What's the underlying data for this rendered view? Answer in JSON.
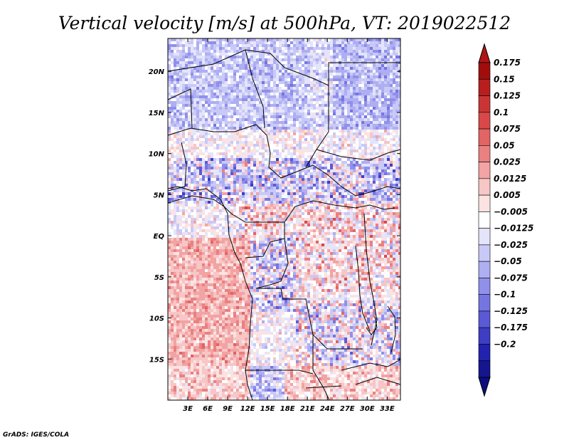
{
  "chart_data": {
    "type": "heatmap",
    "title": "Vertical velocity [m/s] at 500hPa, VT: 2019022512",
    "variable": "Vertical velocity",
    "units": "m/s",
    "level": "500hPa",
    "valid_time": "2019022512",
    "lon_range": [
      0,
      35
    ],
    "lat_range": [
      -20,
      24
    ],
    "x_ticks": [
      {
        "value": 3,
        "label": "3E"
      },
      {
        "value": 6,
        "label": "6E"
      },
      {
        "value": 9,
        "label": "9E"
      },
      {
        "value": 12,
        "label": "12E"
      },
      {
        "value": 15,
        "label": "15E"
      },
      {
        "value": 18,
        "label": "18E"
      },
      {
        "value": 21,
        "label": "21E"
      },
      {
        "value": 24,
        "label": "24E"
      },
      {
        "value": 27,
        "label": "27E"
      },
      {
        "value": 30,
        "label": "30E"
      },
      {
        "value": 33,
        "label": "33E"
      }
    ],
    "y_ticks": [
      {
        "value": 20,
        "label": "20N"
      },
      {
        "value": 15,
        "label": "15N"
      },
      {
        "value": 10,
        "label": "10N"
      },
      {
        "value": 5,
        "label": "5N"
      },
      {
        "value": 0,
        "label": "EQ"
      },
      {
        "value": -5,
        "label": "5S"
      },
      {
        "value": -10,
        "label": "10S"
      },
      {
        "value": -15,
        "label": "15S"
      }
    ],
    "colorbar": {
      "labels": [
        "0.175",
        "0.15",
        "0.125",
        "0.1",
        "0.075",
        "0.05",
        "0.025",
        "0.0125",
        "0.005",
        "−0.005",
        "−0.0125",
        "−0.025",
        "−0.05",
        "−0.075",
        "−0.1",
        "−0.125",
        "−0.175",
        "−0.2"
      ],
      "colors": [
        "#a10d0d",
        "#b81e1e",
        "#c93535",
        "#d84848",
        "#e26464",
        "#ea8080",
        "#f2a3a3",
        "#f7c6c6",
        "#fbe3e3",
        "#ffffff",
        "#e4e4fb",
        "#c9c9f7",
        "#aeaef2",
        "#9090eb",
        "#7575e2",
        "#5a5ad6",
        "#3d3dc5",
        "#2222b0",
        "#15158f"
      ],
      "top_color": "#b01515",
      "bottom_color": "#0d0d80"
    }
  },
  "credit": "GrADS: IGES/COLA"
}
